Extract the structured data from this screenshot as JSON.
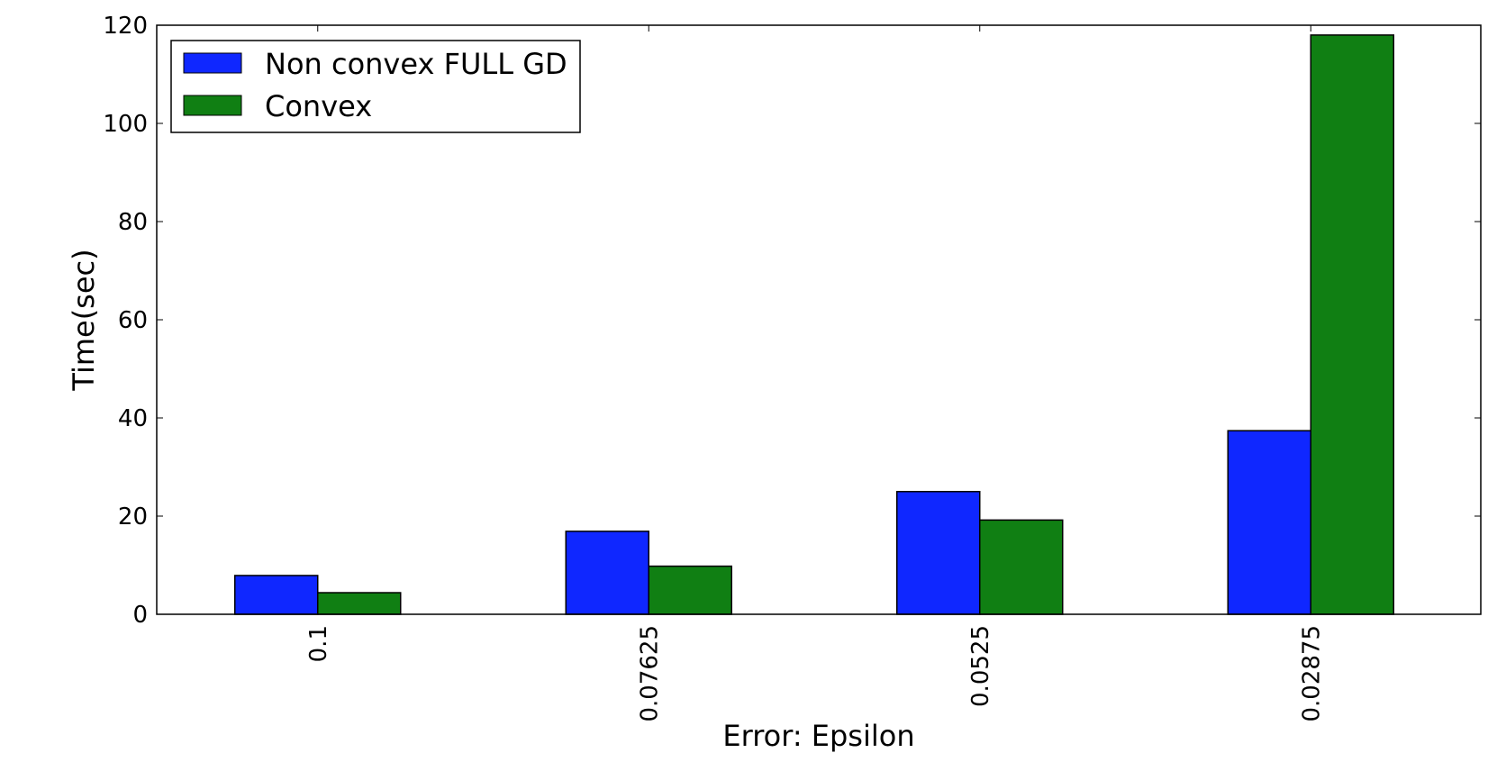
{
  "chart_data": {
    "type": "bar",
    "title": "",
    "xlabel": "Error: Epsilon",
    "ylabel": "Time(sec)",
    "categories": [
      "0.1",
      "0.07625",
      "0.0525",
      "0.02875"
    ],
    "ylim": [
      0,
      120
    ],
    "yticks": [
      "0",
      "20",
      "40",
      "60",
      "80",
      "100",
      "120"
    ],
    "grid": false,
    "legend_position": "top-left",
    "series": [
      {
        "name": "Non convex FULL GD",
        "color": "#0f27ff",
        "values": [
          7.9,
          16.9,
          25.0,
          37.4
        ]
      },
      {
        "name": "Convex",
        "color": "#107f13",
        "values": [
          4.4,
          9.8,
          19.2,
          118.0
        ]
      }
    ]
  }
}
